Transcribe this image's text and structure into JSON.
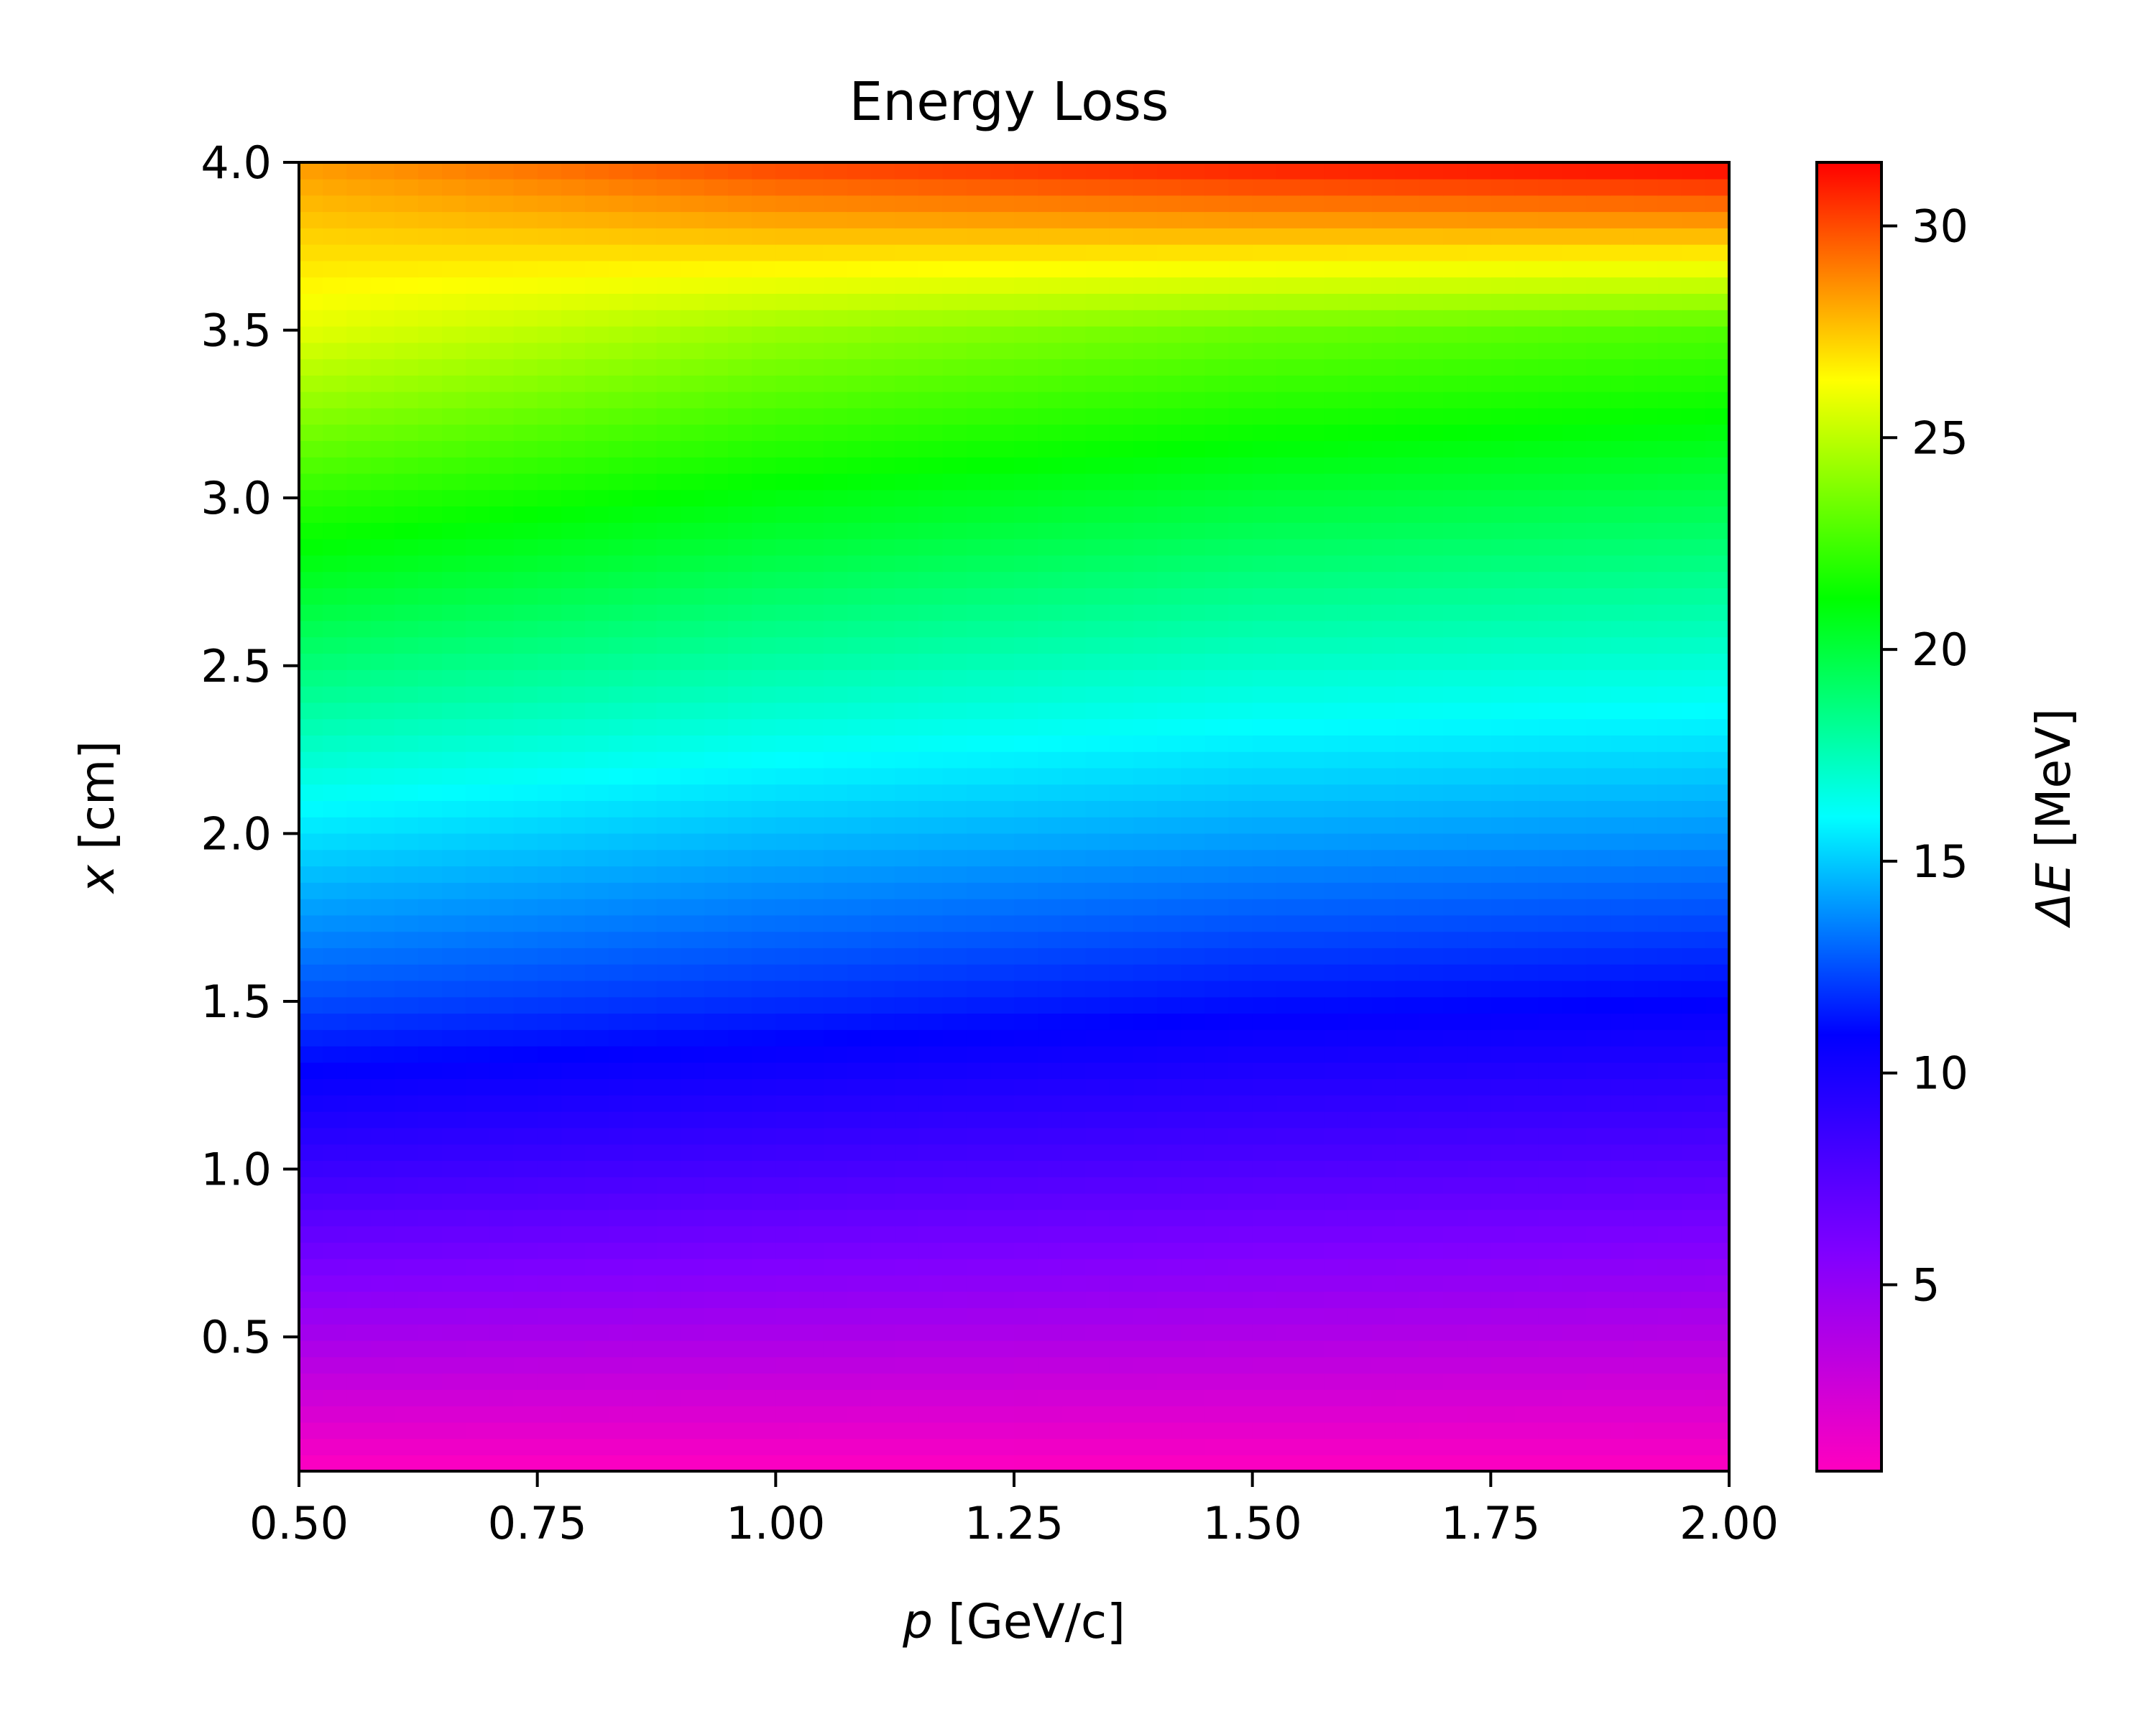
{
  "chart_data": {
    "type": "heatmap",
    "title": "Energy Loss",
    "xlabel_var": "p",
    "xlabel_unit": " [GeV/c]",
    "ylabel_var": "x",
    "ylabel_unit": " [cm]",
    "colorbar_label_var": "ΔE",
    "colorbar_label_unit": " [MeV]",
    "xlim": [
      0.5,
      2.0
    ],
    "ylim": [
      0.1,
      4.0
    ],
    "x_ticks": [
      {
        "value": 0.5,
        "label": "0.50"
      },
      {
        "value": 0.75,
        "label": "0.75"
      },
      {
        "value": 1.0,
        "label": "1.00"
      },
      {
        "value": 1.25,
        "label": "1.25"
      },
      {
        "value": 1.5,
        "label": "1.50"
      },
      {
        "value": 1.75,
        "label": "1.75"
      },
      {
        "value": 2.0,
        "label": "2.00"
      }
    ],
    "y_ticks": [
      {
        "value": 0.5,
        "label": "0.5"
      },
      {
        "value": 1.0,
        "label": "1.0"
      },
      {
        "value": 1.5,
        "label": "1.5"
      },
      {
        "value": 2.0,
        "label": "2.0"
      },
      {
        "value": 2.5,
        "label": "2.5"
      },
      {
        "value": 3.0,
        "label": "3.0"
      },
      {
        "value": 3.5,
        "label": "3.5"
      },
      {
        "value": 4.0,
        "label": "4.0"
      }
    ],
    "colorbar_range": [
      0.6,
      31.5
    ],
    "colorbar_ticks": [
      {
        "value": 5,
        "label": "5"
      },
      {
        "value": 10,
        "label": "10"
      },
      {
        "value": 15,
        "label": "15"
      },
      {
        "value": 20,
        "label": "20"
      },
      {
        "value": 25,
        "label": "25"
      },
      {
        "value": 30,
        "label": "30"
      }
    ],
    "colormap": "gist_rainbow_r",
    "colormap_stops": [
      "#ff00bf",
      "#8000ff",
      "#0000ff",
      "#00ffff",
      "#00ff00",
      "#ffff00",
      "#ff0000"
    ],
    "surface": {
      "x": [
        0.5,
        1.0,
        1.5,
        2.0
      ],
      "y": [
        0.1,
        0.5,
        1.0,
        1.5,
        2.0,
        2.5,
        3.0,
        3.5,
        4.0
      ],
      "z": [
        [
          0.6,
          0.6,
          0.6,
          0.6
        ],
        [
          4.2,
          4.0,
          3.8,
          3.6
        ],
        [
          8.6,
          8.1,
          7.7,
          7.4
        ],
        [
          12.4,
          11.8,
          11.2,
          10.9
        ],
        [
          15.5,
          14.7,
          14.2,
          13.9
        ],
        [
          18.8,
          17.8,
          17.1,
          16.8
        ],
        [
          22.1,
          20.9,
          20.1,
          19.7
        ],
        [
          25.8,
          24.3,
          23.4,
          22.8
        ],
        [
          28.4,
          30.2,
          31.0,
          31.5
        ]
      ]
    }
  }
}
